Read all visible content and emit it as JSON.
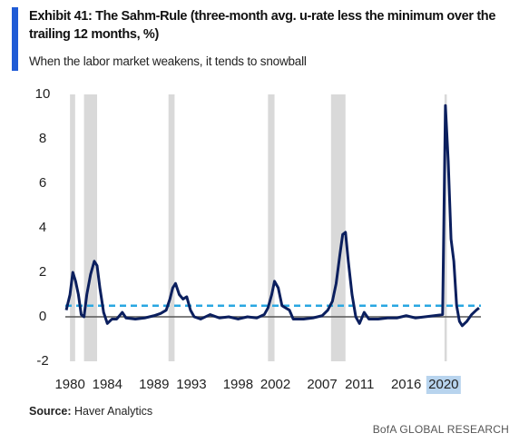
{
  "chart_data": {
    "type": "line",
    "title": "Exhibit 41: The Sahm-Rule (three-month avg. u-rate less the minimum over the trailing 12 months, %)",
    "subtitle": "When the labor market weakens, it tends to snowball",
    "source_label": "Source:",
    "source": "Haver Analytics",
    "brand": "BofA GLOBAL RESEARCH",
    "xlim": [
      1979.5,
      2024
    ],
    "ylim": [
      -2,
      10
    ],
    "xticks": [
      1980,
      1984,
      1989,
      1993,
      1998,
      2002,
      2007,
      2011,
      2016,
      2020
    ],
    "yticks": [
      -2,
      0,
      2,
      4,
      6,
      8,
      10
    ],
    "threshold": 0.5,
    "threshold_color": "#29a7e1",
    "recession_color": "#d9d9d9",
    "recessions": [
      [
        1980.0,
        1980.55
      ],
      [
        1981.5,
        1982.9
      ],
      [
        1990.55,
        1991.2
      ],
      [
        2001.2,
        2001.9
      ],
      [
        2007.95,
        2009.5
      ],
      [
        2020.1,
        2020.35
      ]
    ],
    "x": [
      1979.6,
      1980.0,
      1980.3,
      1980.6,
      1980.9,
      1981.2,
      1981.5,
      1981.8,
      1982.2,
      1982.6,
      1982.9,
      1983.2,
      1983.6,
      1984.0,
      1984.5,
      1985.0,
      1985.6,
      1986.0,
      1987.0,
      1988.0,
      1989.0,
      1989.7,
      1990.3,
      1990.7,
      1991.0,
      1991.3,
      1991.7,
      1992.1,
      1992.5,
      1992.9,
      1993.3,
      1994.0,
      1995.0,
      1996.0,
      1997.0,
      1998.0,
      1999.0,
      2000.0,
      2000.8,
      2001.2,
      2001.6,
      2001.9,
      2002.3,
      2002.7,
      2003.1,
      2003.5,
      2003.9,
      2005.0,
      2006.0,
      2007.0,
      2007.6,
      2008.1,
      2008.5,
      2008.9,
      2009.2,
      2009.5,
      2009.8,
      2010.2,
      2010.6,
      2011.0,
      2011.5,
      2012.0,
      2013.0,
      2014.0,
      2015.0,
      2016.0,
      2017.0,
      2018.0,
      2019.0,
      2019.9,
      2020.2,
      2020.5,
      2020.8,
      2021.1,
      2021.4,
      2021.7,
      2022.0,
      2022.5,
      2023.0,
      2023.5,
      2023.8
    ],
    "series": [
      {
        "name": "Sahm rule",
        "color": "#0b1f5e",
        "values": [
          0.3,
          1.0,
          2.0,
          1.6,
          1.0,
          0.1,
          0.0,
          1.0,
          1.9,
          2.5,
          2.3,
          1.3,
          0.2,
          -0.3,
          -0.1,
          -0.1,
          0.2,
          -0.05,
          -0.1,
          -0.05,
          0.05,
          0.15,
          0.3,
          0.8,
          1.3,
          1.5,
          1.0,
          0.8,
          0.9,
          0.3,
          0.0,
          -0.1,
          0.1,
          -0.05,
          0.0,
          -0.1,
          0.0,
          -0.05,
          0.1,
          0.4,
          1.0,
          1.6,
          1.3,
          0.5,
          0.4,
          0.3,
          -0.1,
          -0.1,
          -0.05,
          0.05,
          0.3,
          0.7,
          1.5,
          2.8,
          3.7,
          3.8,
          2.5,
          1.0,
          0.0,
          -0.3,
          0.2,
          -0.1,
          -0.1,
          -0.05,
          -0.05,
          0.05,
          -0.05,
          0.0,
          0.05,
          0.1,
          9.5,
          7.0,
          3.5,
          2.5,
          0.5,
          -0.2,
          -0.4,
          -0.2,
          0.1,
          0.3,
          0.4
        ]
      }
    ]
  }
}
